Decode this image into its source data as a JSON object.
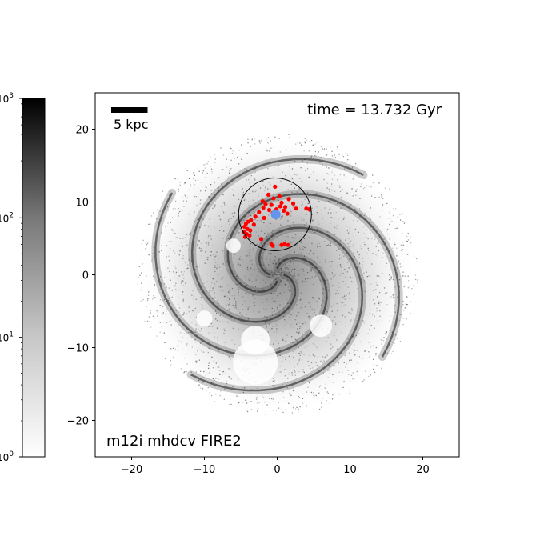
{
  "chart_data": {
    "type": "scatter",
    "time_label": "time = 13.732 Gyr",
    "scalebar_label": "5 kpc",
    "scalebar_length": 5,
    "sim_label": "m12i mhdcv FIRE2",
    "xlim": [
      -25,
      25
    ],
    "ylim": [
      -25,
      25
    ],
    "x_ticks": [
      -20,
      -10,
      0,
      10,
      20
    ],
    "y_ticks": [
      -20,
      -10,
      0,
      10,
      20
    ],
    "x_tick_labels": [
      "−20",
      "−10",
      "0",
      "10",
      "20"
    ],
    "y_tick_labels": [
      "−20",
      "−10",
      "0",
      "10",
      "20"
    ],
    "circle": {
      "center": [
        -0.3,
        8.3
      ],
      "radius": 5.0
    },
    "host_point": {
      "x": -0.2,
      "y": 8.3,
      "color": "#6495ed"
    },
    "colorbar": {
      "scale": "log",
      "range": [
        1,
        1000
      ],
      "ticks": [
        {
          "value": 1,
          "label": "10",
          "exp": "0"
        },
        {
          "value": 10,
          "label": "10",
          "exp": "1"
        },
        {
          "value": 100,
          "label": "10",
          "exp": "2"
        },
        {
          "value": 1000,
          "label": "10",
          "exp": "3"
        }
      ],
      "color_low": "#ffffff",
      "color_high": "#000000"
    },
    "points_color": "#ff0000",
    "points": [
      [
        -0.3,
        12.1
      ],
      [
        -1.2,
        11.0
      ],
      [
        0.3,
        10.8
      ],
      [
        -0.5,
        10.5
      ],
      [
        1.6,
        10.4
      ],
      [
        -2.0,
        10.1
      ],
      [
        0.6,
        9.9
      ],
      [
        2.2,
        9.8
      ],
      [
        -1.6,
        9.7
      ],
      [
        -0.8,
        9.6
      ],
      [
        0.4,
        9.4
      ],
      [
        1.1,
        9.3
      ],
      [
        -1.9,
        9.2
      ],
      [
        2.6,
        9.1
      ],
      [
        4.0,
        9.1
      ],
      [
        4.4,
        9.0
      ],
      [
        -0.1,
        9.0
      ],
      [
        -1.1,
        8.9
      ],
      [
        0.9,
        8.8
      ],
      [
        -2.5,
        8.6
      ],
      [
        -0.6,
        8.5
      ],
      [
        1.4,
        8.4
      ],
      [
        -3.0,
        8.0
      ],
      [
        -1.8,
        7.8
      ],
      [
        -3.6,
        7.5
      ],
      [
        -4.0,
        7.3
      ],
      [
        -4.3,
        7.0
      ],
      [
        -3.2,
        6.9
      ],
      [
        -4.5,
        6.6
      ],
      [
        -4.1,
        6.3
      ],
      [
        -3.7,
        6.1
      ],
      [
        -4.6,
        5.9
      ],
      [
        -4.2,
        5.6
      ],
      [
        -3.8,
        5.4
      ],
      [
        -4.4,
        5.2
      ],
      [
        -2.2,
        4.9
      ],
      [
        -0.8,
        4.2
      ],
      [
        -0.6,
        4.0
      ],
      [
        0.6,
        4.1
      ],
      [
        1.0,
        4.2
      ],
      [
        1.5,
        4.1
      ]
    ]
  }
}
